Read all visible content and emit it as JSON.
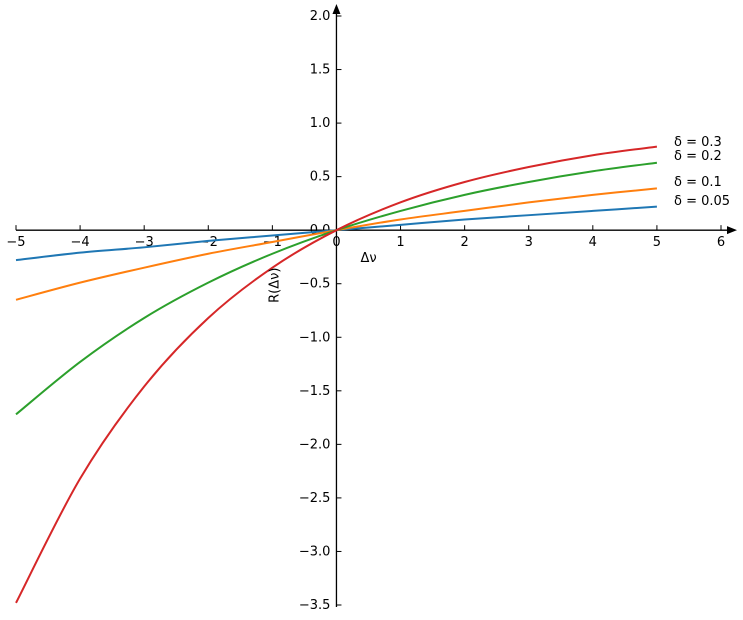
{
  "chart_data": {
    "type": "line",
    "xlabel": "Δν",
    "ylabel": "R(Δν)",
    "xlim": [
      -5,
      6
    ],
    "ylim": [
      -3.5,
      2.0
    ],
    "x_ticks": [
      "−5",
      "−4",
      "−3",
      "−2",
      "−1",
      "0",
      "1",
      "2",
      "3",
      "4",
      "5",
      "6"
    ],
    "y_ticks": [
      "2.0",
      "1.5",
      "1.0",
      "0.5",
      "0.0",
      "−0.5",
      "−1.0",
      "−1.5",
      "−2.0",
      "−2.5",
      "−3.0",
      "−3.5"
    ],
    "grid": false,
    "series": [
      {
        "name": "δ = 0.05",
        "color": "#1f77b4",
        "x": [
          -5,
          -4,
          -3,
          -2,
          -1,
          0,
          1,
          2,
          3,
          4,
          5
        ],
        "y": [
          -0.28,
          -0.21,
          -0.16,
          -0.1,
          -0.05,
          0,
          0.05,
          0.1,
          0.14,
          0.18,
          0.22
        ]
      },
      {
        "name": "δ = 0.1",
        "color": "#ff7f0e",
        "x": [
          -5,
          -4,
          -3,
          -2,
          -1,
          0,
          1,
          2,
          3,
          4,
          5
        ],
        "y": [
          -0.65,
          -0.49,
          -0.35,
          -0.22,
          -0.11,
          0,
          0.1,
          0.18,
          0.26,
          0.33,
          0.39
        ]
      },
      {
        "name": "δ = 0.2",
        "color": "#2ca02c",
        "x": [
          -5,
          -4,
          -3,
          -2,
          -1,
          0,
          1,
          2,
          3,
          4,
          5
        ],
        "y": [
          -1.72,
          -1.23,
          -0.82,
          -0.49,
          -0.22,
          0,
          0.18,
          0.33,
          0.45,
          0.55,
          0.63
        ]
      },
      {
        "name": "δ = 0.3",
        "color": "#d62728",
        "x": [
          -5,
          -4,
          -3,
          -2,
          -1,
          0,
          1,
          2,
          3,
          4,
          5
        ],
        "y": [
          -3.48,
          -2.32,
          -1.46,
          -0.82,
          -0.35,
          0,
          0.26,
          0.45,
          0.59,
          0.7,
          0.78
        ]
      }
    ]
  }
}
